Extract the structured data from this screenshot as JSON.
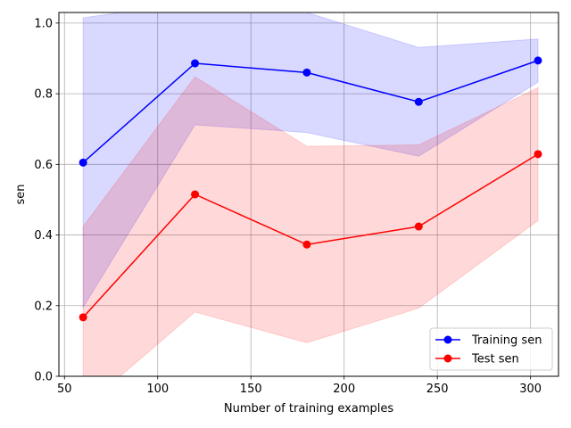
{
  "chart_data": {
    "type": "line",
    "title": "",
    "xlabel": "Number of training examples",
    "ylabel": "sen",
    "xlim": [
      47,
      315
    ],
    "ylim": [
      0.0,
      1.03
    ],
    "xticks": [
      50,
      100,
      150,
      200,
      250,
      300
    ],
    "yticks": [
      0.0,
      0.2,
      0.4,
      0.6,
      0.8,
      1.0
    ],
    "xtick_labels": [
      "50",
      "100",
      "150",
      "200",
      "250",
      "300"
    ],
    "ytick_labels": [
      "0.0",
      "0.2",
      "0.4",
      "0.6",
      "0.8",
      "1.0"
    ],
    "grid": true,
    "legend_position": "lower-right",
    "x": [
      60,
      120,
      180,
      240,
      304
    ],
    "series": [
      {
        "name": "Training sen",
        "color": "#0000ff",
        "band_color": "#0000ff",
        "values": [
          0.605,
          0.886,
          0.86,
          0.777,
          0.894
        ],
        "lower": [
          0.195,
          0.712,
          0.69,
          0.623,
          0.833
        ],
        "upper": [
          1.015,
          1.06,
          1.03,
          0.931,
          0.955
        ]
      },
      {
        "name": "Test sen",
        "color": "#ff0000",
        "band_color": "#ff0000",
        "values": [
          0.167,
          0.515,
          0.373,
          0.424,
          0.629
        ],
        "lower": [
          -0.09,
          0.182,
          0.095,
          0.193,
          0.441
        ],
        "upper": [
          0.424,
          0.848,
          0.651,
          0.655,
          0.817
        ]
      }
    ]
  }
}
